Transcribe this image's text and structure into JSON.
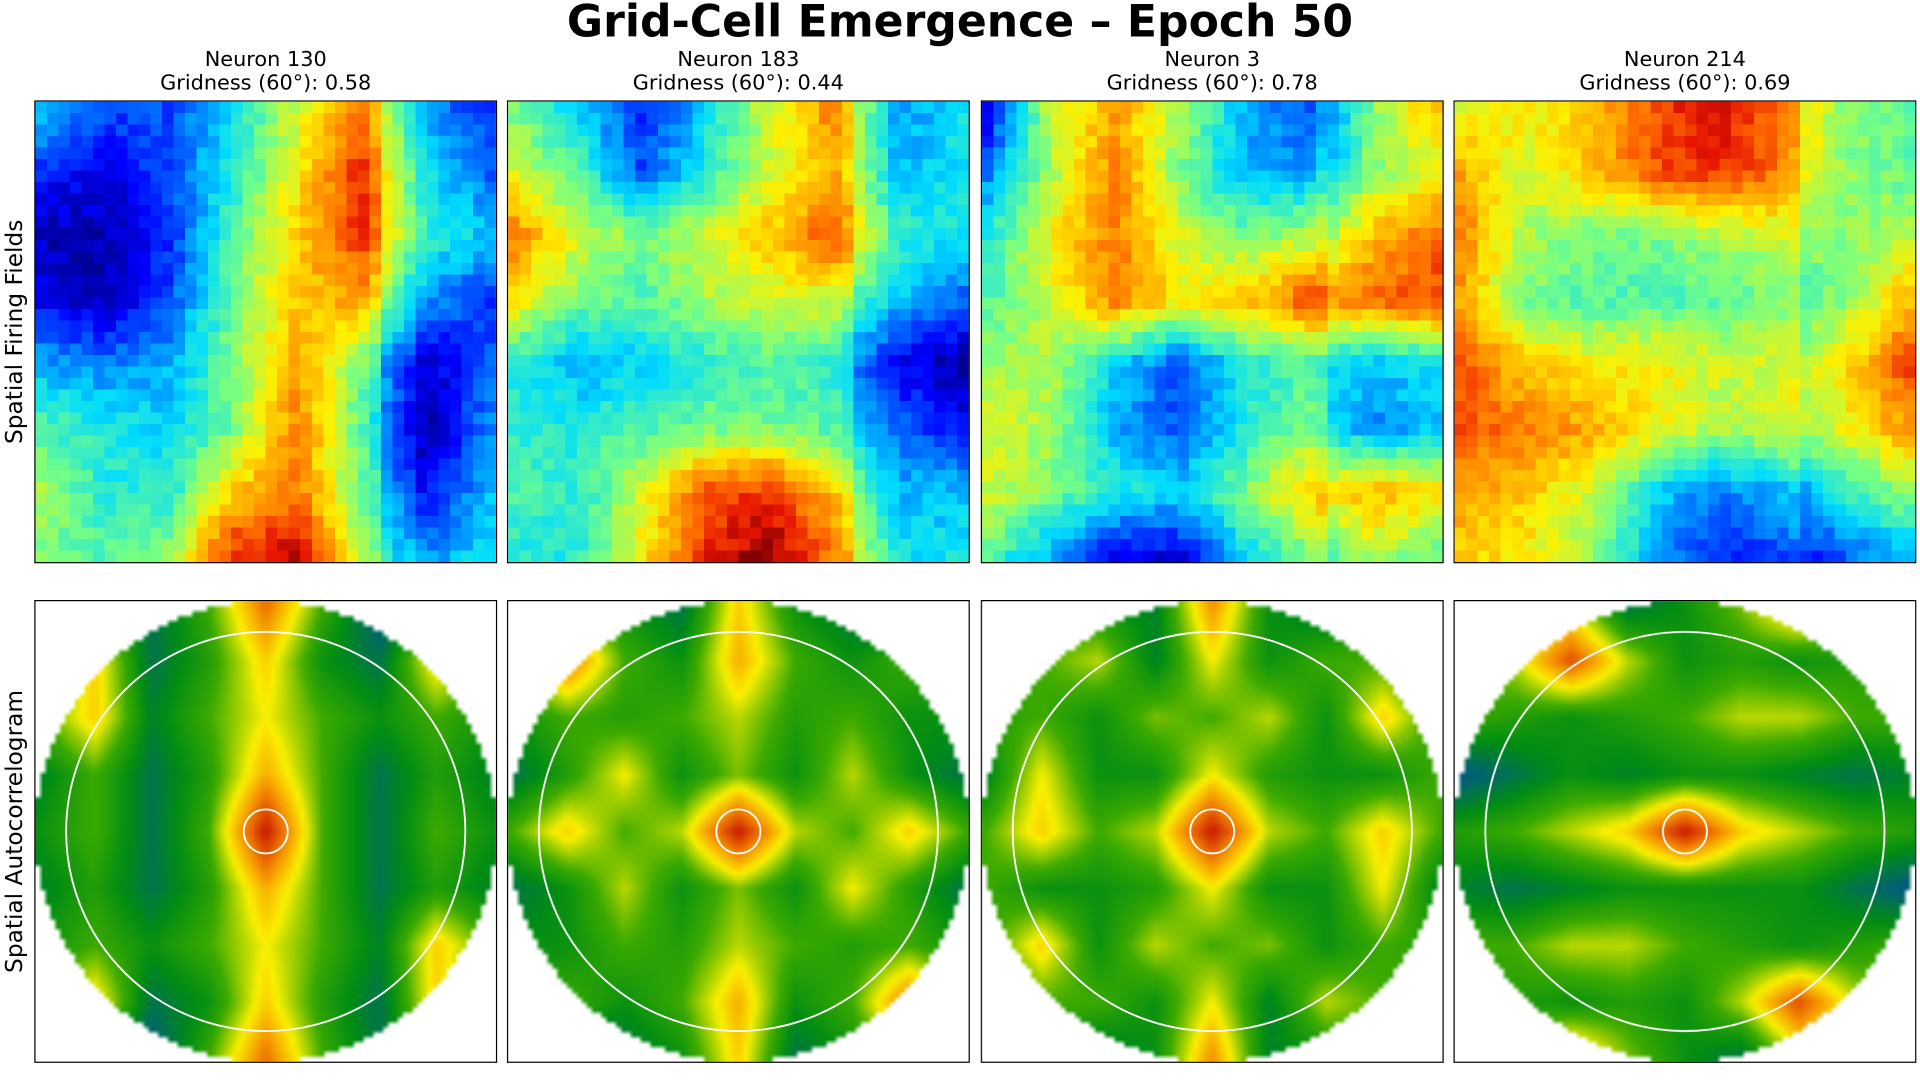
{
  "chart_data": {
    "type": "heatmap",
    "title": "Grid-Cell Emergence – Epoch 50",
    "row_labels": [
      "Spatial Firing Fields",
      "Spatial Autocorrelogram"
    ],
    "field_colormap": "jet",
    "autocorr_colormap": "blue-green-yellow-red",
    "panels": [
      {
        "neuron": "Neuron 130",
        "gridness_label": "Gridness (60°): 0.58",
        "gridness": 0.58,
        "field": [
          [
            0.35,
            0.2,
            0.2,
            0.35,
            0.6,
            0.8,
            0.35,
            0.25
          ],
          [
            0.15,
            0.1,
            0.2,
            0.4,
            0.65,
            0.9,
            0.45,
            0.3
          ],
          [
            0.05,
            0.05,
            0.15,
            0.45,
            0.7,
            0.9,
            0.5,
            0.4
          ],
          [
            0.1,
            0.05,
            0.2,
            0.5,
            0.7,
            0.75,
            0.35,
            0.25
          ],
          [
            0.3,
            0.25,
            0.3,
            0.5,
            0.75,
            0.5,
            0.15,
            0.3
          ],
          [
            0.45,
            0.4,
            0.35,
            0.5,
            0.8,
            0.45,
            0.1,
            0.35
          ],
          [
            0.55,
            0.4,
            0.4,
            0.7,
            0.8,
            0.5,
            0.2,
            0.4
          ],
          [
            0.5,
            0.45,
            0.55,
            0.9,
            0.95,
            0.55,
            0.35,
            0.45
          ]
        ],
        "autocorr": [
          [
            0.4,
            0.5,
            0.3,
            0.5,
            0.85,
            0.5,
            0.2,
            0.4,
            0.4
          ],
          [
            0.4,
            0.7,
            0.3,
            0.45,
            0.7,
            0.4,
            0.3,
            0.7,
            0.5
          ],
          [
            0.5,
            0.7,
            0.35,
            0.5,
            0.65,
            0.5,
            0.4,
            0.5,
            0.4
          ],
          [
            0.35,
            0.5,
            0.3,
            0.45,
            0.75,
            0.5,
            0.3,
            0.45,
            0.35
          ],
          [
            0.4,
            0.5,
            0.3,
            0.5,
            1.0,
            0.5,
            0.3,
            0.5,
            0.4
          ],
          [
            0.35,
            0.45,
            0.3,
            0.45,
            0.75,
            0.5,
            0.3,
            0.45,
            0.35
          ],
          [
            0.4,
            0.5,
            0.4,
            0.5,
            0.65,
            0.5,
            0.35,
            0.7,
            0.5
          ],
          [
            0.5,
            0.7,
            0.3,
            0.4,
            0.7,
            0.45,
            0.3,
            0.7,
            0.4
          ],
          [
            0.4,
            0.4,
            0.2,
            0.5,
            0.85,
            0.5,
            0.3,
            0.5,
            0.4
          ]
        ]
      },
      {
        "neuron": "Neuron 183",
        "gridness_label": "Gridness (60°): 0.44",
        "gridness": 0.44,
        "field": [
          [
            0.5,
            0.35,
            0.15,
            0.35,
            0.6,
            0.8,
            0.35,
            0.45
          ],
          [
            0.6,
            0.45,
            0.2,
            0.4,
            0.6,
            0.75,
            0.4,
            0.45
          ],
          [
            0.8,
            0.6,
            0.5,
            0.6,
            0.7,
            0.85,
            0.5,
            0.45
          ],
          [
            0.65,
            0.5,
            0.45,
            0.55,
            0.6,
            0.6,
            0.4,
            0.3
          ],
          [
            0.4,
            0.3,
            0.35,
            0.4,
            0.45,
            0.4,
            0.2,
            0.1
          ],
          [
            0.4,
            0.4,
            0.45,
            0.5,
            0.5,
            0.45,
            0.3,
            0.2
          ],
          [
            0.45,
            0.4,
            0.6,
            0.85,
            0.9,
            0.7,
            0.4,
            0.4
          ],
          [
            0.4,
            0.4,
            0.65,
            0.9,
            1.0,
            0.8,
            0.45,
            0.45
          ]
        ],
        "autocorr": [
          [
            0.4,
            0.5,
            0.4,
            0.3,
            0.7,
            0.4,
            0.3,
            0.2,
            0.4
          ],
          [
            0.5,
            0.85,
            0.5,
            0.4,
            0.75,
            0.5,
            0.4,
            0.5,
            0.4
          ],
          [
            0.4,
            0.5,
            0.45,
            0.5,
            0.6,
            0.45,
            0.5,
            0.4,
            0.4
          ],
          [
            0.3,
            0.45,
            0.65,
            0.4,
            0.55,
            0.4,
            0.6,
            0.4,
            0.3
          ],
          [
            0.5,
            0.7,
            0.5,
            0.6,
            1.0,
            0.6,
            0.5,
            0.7,
            0.5
          ],
          [
            0.3,
            0.4,
            0.6,
            0.4,
            0.55,
            0.4,
            0.65,
            0.45,
            0.3
          ],
          [
            0.4,
            0.4,
            0.5,
            0.45,
            0.6,
            0.5,
            0.45,
            0.5,
            0.4
          ],
          [
            0.4,
            0.5,
            0.4,
            0.5,
            0.75,
            0.4,
            0.5,
            0.85,
            0.5
          ],
          [
            0.4,
            0.2,
            0.3,
            0.4,
            0.7,
            0.3,
            0.4,
            0.5,
            0.4
          ]
        ]
      },
      {
        "neuron": "Neuron 3",
        "gridness_label": "Gridness (60°): 0.78",
        "gridness": 0.78,
        "field": [
          [
            0.1,
            0.6,
            0.75,
            0.55,
            0.3,
            0.2,
            0.6,
            0.8
          ],
          [
            0.25,
            0.55,
            0.8,
            0.5,
            0.3,
            0.3,
            0.6,
            0.7
          ],
          [
            0.4,
            0.65,
            0.8,
            0.6,
            0.5,
            0.55,
            0.8,
            0.9
          ],
          [
            0.45,
            0.6,
            0.8,
            0.65,
            0.7,
            0.85,
            0.9,
            0.95
          ],
          [
            0.55,
            0.55,
            0.35,
            0.2,
            0.4,
            0.45,
            0.4,
            0.45
          ],
          [
            0.6,
            0.55,
            0.3,
            0.2,
            0.4,
            0.5,
            0.35,
            0.4
          ],
          [
            0.6,
            0.5,
            0.4,
            0.35,
            0.5,
            0.7,
            0.8,
            0.75
          ],
          [
            0.45,
            0.3,
            0.1,
            0.1,
            0.35,
            0.5,
            0.65,
            0.55
          ]
        ],
        "autocorr": [
          [
            0.4,
            0.5,
            0.4,
            0.35,
            0.8,
            0.4,
            0.3,
            0.4,
            0.4
          ],
          [
            0.4,
            0.5,
            0.6,
            0.35,
            0.65,
            0.4,
            0.5,
            0.5,
            0.4
          ],
          [
            0.45,
            0.5,
            0.4,
            0.55,
            0.5,
            0.6,
            0.4,
            0.7,
            0.45
          ],
          [
            0.35,
            0.65,
            0.4,
            0.4,
            0.65,
            0.45,
            0.4,
            0.4,
            0.5
          ],
          [
            0.5,
            0.7,
            0.5,
            0.6,
            1.0,
            0.6,
            0.5,
            0.7,
            0.5
          ],
          [
            0.5,
            0.4,
            0.4,
            0.45,
            0.65,
            0.4,
            0.4,
            0.65,
            0.35
          ],
          [
            0.45,
            0.7,
            0.4,
            0.6,
            0.5,
            0.55,
            0.4,
            0.5,
            0.45
          ],
          [
            0.4,
            0.5,
            0.5,
            0.4,
            0.65,
            0.35,
            0.6,
            0.5,
            0.4
          ],
          [
            0.4,
            0.4,
            0.3,
            0.4,
            0.8,
            0.35,
            0.4,
            0.5,
            0.4
          ]
        ]
      },
      {
        "neuron": "Neuron 214",
        "gridness_label": "Gridness (60°): 0.69",
        "gridness": 0.69,
        "field": [
          [
            0.6,
            0.65,
            0.7,
            0.85,
            0.95,
            0.8,
            0.6,
            0.55
          ],
          [
            0.75,
            0.6,
            0.7,
            0.85,
            0.9,
            0.8,
            0.6,
            0.55
          ],
          [
            0.8,
            0.55,
            0.5,
            0.5,
            0.55,
            0.6,
            0.6,
            0.65
          ],
          [
            0.75,
            0.5,
            0.45,
            0.45,
            0.45,
            0.5,
            0.6,
            0.8
          ],
          [
            0.85,
            0.7,
            0.65,
            0.65,
            0.6,
            0.6,
            0.75,
            0.95
          ],
          [
            0.85,
            0.8,
            0.75,
            0.65,
            0.55,
            0.6,
            0.7,
            0.85
          ],
          [
            0.75,
            0.7,
            0.6,
            0.35,
            0.25,
            0.3,
            0.5,
            0.6
          ],
          [
            0.7,
            0.65,
            0.55,
            0.3,
            0.15,
            0.2,
            0.3,
            0.4
          ]
        ],
        "autocorr": [
          [
            0.4,
            0.5,
            0.6,
            0.3,
            0.4,
            0.55,
            0.8,
            0.5,
            0.4
          ],
          [
            0.5,
            0.6,
            0.9,
            0.6,
            0.4,
            0.45,
            0.4,
            0.45,
            0.4
          ],
          [
            0.5,
            0.45,
            0.4,
            0.45,
            0.5,
            0.6,
            0.6,
            0.5,
            0.5
          ],
          [
            0.2,
            0.3,
            0.4,
            0.35,
            0.4,
            0.4,
            0.35,
            0.3,
            0.35
          ],
          [
            0.45,
            0.5,
            0.6,
            0.7,
            1.0,
            0.7,
            0.6,
            0.5,
            0.45
          ],
          [
            0.35,
            0.3,
            0.35,
            0.4,
            0.4,
            0.4,
            0.4,
            0.3,
            0.2
          ],
          [
            0.5,
            0.5,
            0.6,
            0.6,
            0.5,
            0.45,
            0.4,
            0.45,
            0.5
          ],
          [
            0.4,
            0.45,
            0.4,
            0.45,
            0.4,
            0.6,
            0.9,
            0.6,
            0.5
          ],
          [
            0.4,
            0.5,
            0.8,
            0.55,
            0.4,
            0.3,
            0.6,
            0.5,
            0.4
          ]
        ]
      }
    ]
  }
}
